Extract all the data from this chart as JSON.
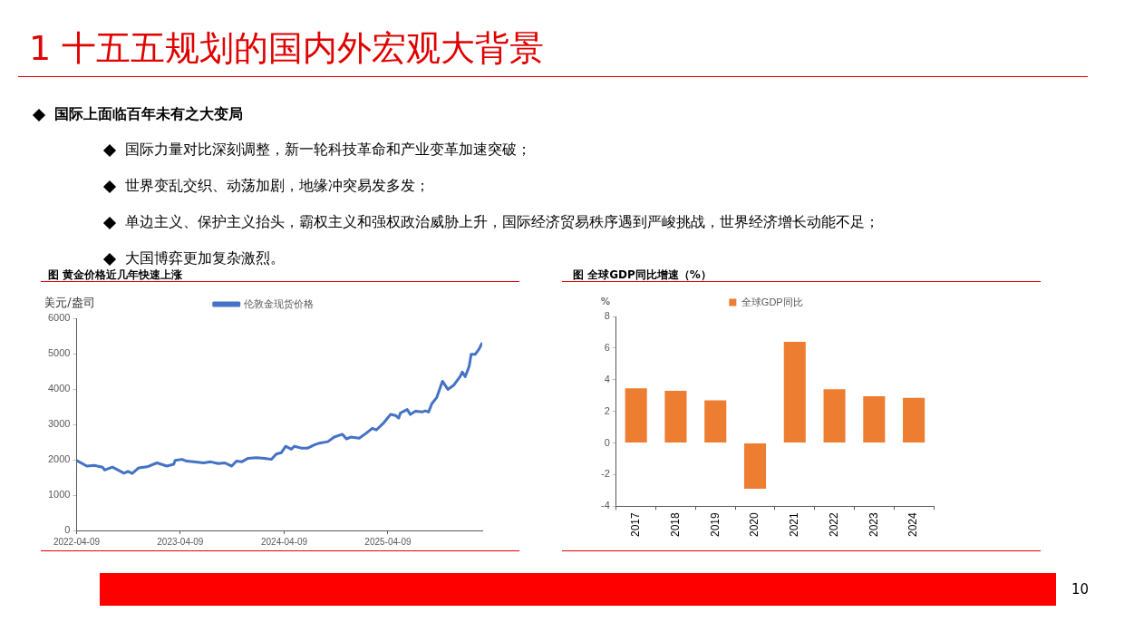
{
  "chart_data": [
    {
      "type": "other",
      "title": "1 十五五规划的国内外宏观大背景",
      "annotations": [
        "国际上面临百年未有之大变局",
        "国际力量对比深刻调整，新一轮科技革命和产业变革加速突破；",
        "世界变乱交织、动荡加剧，地缘冲突易发多发；",
        "单边主义、保护主义抬头，霸权主义和强权政治威胁上升，国际经济贸易秩序遇到严峻挑战，世界经济增长动能不足；",
        "大国博弈更加复杂激烈。",
        "10"
      ]
    },
    {
      "type": "line",
      "title": "图  黄金价格近几年快速上涨",
      "ylabel": "美元/盎司",
      "legend": "top",
      "grid": false,
      "marker": "none",
      "xlim": [
        "2022-04-09",
        "2026-03-07"
      ],
      "xticks": [
        "2022-04-09",
        "2023-04-09",
        "2024-04-09",
        "2025-04-09"
      ],
      "ylim": [
        0,
        6000
      ],
      "yticks": [
        0,
        1000,
        2000,
        3000,
        4000,
        5000,
        6000
      ],
      "series": [
        {
          "name": "伦敦金现货价格",
          "color": "#4472c4",
          "x": [
            "2022-04-09",
            "2022-05-15",
            "2022-06-10",
            "2022-07-09",
            "2022-07-17",
            "2022-08-13",
            "2022-08-30",
            "2022-09-23",
            "2022-10-07",
            "2022-10-22",
            "2022-11-14",
            "2022-12-13",
            "2023-01-17",
            "2023-02-21",
            "2023-03-17",
            "2023-03-22",
            "2023-04-15",
            "2023-05-02",
            "2023-05-26",
            "2023-06-30",
            "2023-07-25",
            "2023-08-21",
            "2023-09-13",
            "2023-10-07",
            "2023-10-24",
            "2023-11-11",
            "2023-12-04",
            "2024-01-02",
            "2024-01-31",
            "2024-02-24",
            "2024-03-12",
            "2024-03-30",
            "2024-04-14",
            "2024-05-04",
            "2024-05-15",
            "2024-06-08",
            "2024-07-01",
            "2024-07-24",
            "2024-08-11",
            "2024-09-09",
            "2024-10-02",
            "2024-10-31",
            "2024-11-14",
            "2024-11-29",
            "2024-12-29",
            "2025-01-21",
            "2025-02-13",
            "2025-02-27",
            "2025-03-26",
            "2025-04-18",
            "2025-05-06",
            "2025-05-17",
            "2025-05-23",
            "2025-06-16",
            "2025-06-27",
            "2025-07-15",
            "2025-08-07",
            "2025-08-19",
            "2025-08-30",
            "2025-09-11",
            "2025-09-28",
            "2025-10-18",
            "2025-11-06",
            "2025-11-26",
            "2025-12-19",
            "2025-12-27",
            "2026-01-06",
            "2026-01-20",
            "2026-01-27",
            "2026-02-10",
            "2026-02-24",
            "2026-03-07"
          ],
          "values": [
            1980,
            1820,
            1840,
            1790,
            1710,
            1790,
            1720,
            1620,
            1670,
            1610,
            1770,
            1800,
            1910,
            1820,
            1870,
            1980,
            2010,
            1960,
            1940,
            1910,
            1940,
            1890,
            1910,
            1820,
            1960,
            1940,
            2040,
            2060,
            2040,
            2010,
            2160,
            2200,
            2380,
            2300,
            2380,
            2330,
            2330,
            2420,
            2470,
            2510,
            2640,
            2720,
            2590,
            2640,
            2610,
            2740,
            2890,
            2840,
            3050,
            3280,
            3250,
            3180,
            3320,
            3420,
            3280,
            3370,
            3350,
            3380,
            3350,
            3590,
            3760,
            4220,
            3990,
            4100,
            4350,
            4480,
            4350,
            4640,
            4980,
            4980,
            5130,
            5310
          ]
        }
      ]
    },
    {
      "type": "bar",
      "title": "图  全球GDP同比增速（%）",
      "ylabel": "%",
      "legend": "top",
      "grid": false,
      "categories": [
        "2017",
        "2018",
        "2019",
        "2020",
        "2021",
        "2022",
        "2023",
        "2024"
      ],
      "ylim": [
        -4,
        8
      ],
      "yticks": [
        -4,
        -2,
        0,
        2,
        4,
        6,
        8
      ],
      "series": [
        {
          "name": "全球GDP同比",
          "color": "#ed7d31",
          "values": [
            3.45,
            3.3,
            2.7,
            -2.9,
            6.4,
            3.4,
            2.95,
            2.85
          ]
        }
      ]
    }
  ]
}
